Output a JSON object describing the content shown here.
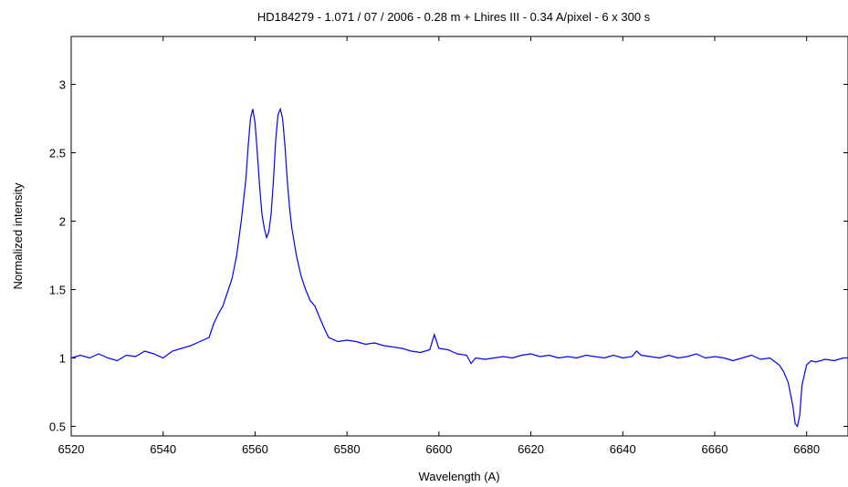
{
  "chart_data": {
    "type": "line",
    "title": "HD184279 - 1.071 / 07 / 2006 - 0.28 m + Lhires III - 0.34 A/pixel - 6 x 300 s",
    "xlabel": "Wavelength (A)",
    "ylabel": "Normalized intensity",
    "xlim": [
      6520,
      6689
    ],
    "ylim": [
      0.43,
      3.35
    ],
    "x_ticks": [
      6520,
      6540,
      6560,
      6580,
      6600,
      6620,
      6640,
      6660,
      6680
    ],
    "y_ticks": [
      0.5,
      1,
      1.5,
      2,
      2.5,
      3
    ],
    "y_tick_labels": [
      "0.5",
      "1",
      "1.5",
      "2",
      "2.5",
      "3"
    ],
    "grid": false,
    "line_color": "#0000ff",
    "series": [
      {
        "x": [
          6520,
          6522,
          6524,
          6526,
          6528,
          6530,
          6532,
          6534,
          6536,
          6538,
          6540,
          6542,
          6544,
          6546,
          6548,
          6550,
          6551,
          6552,
          6553,
          6554,
          6555,
          6556,
          6557,
          6558,
          6558.5,
          6559,
          6559.5,
          6560,
          6560.5,
          6561,
          6561.5,
          6562,
          6562.5,
          6563,
          6563.5,
          6564,
          6564.5,
          6565,
          6565.5,
          6566,
          6566.5,
          6567,
          6567.5,
          6568,
          6569,
          6570,
          6571,
          6572,
          6573,
          6574,
          6575,
          6576,
          6578,
          6580,
          6582,
          6584,
          6586,
          6588,
          6590,
          6592,
          6594,
          6596,
          6598,
          6599,
          6600,
          6602,
          6604,
          6606,
          6607,
          6608,
          6610,
          6612,
          6614,
          6616,
          6618,
          6620,
          6622,
          6624,
          6626,
          6628,
          6630,
          6632,
          6634,
          6636,
          6638,
          6640,
          6642,
          6643,
          6644,
          6646,
          6648,
          6650,
          6652,
          6654,
          6656,
          6658,
          6660,
          6662,
          6664,
          6666,
          6668,
          6670,
          6672,
          6674,
          6675,
          6676,
          6677,
          6677.5,
          6678,
          6678.5,
          6679,
          6680,
          6681,
          6682,
          6684,
          6686,
          6688,
          6689
        ],
        "y": [
          1.0,
          1.02,
          1.0,
          1.03,
          1.0,
          0.98,
          1.02,
          1.01,
          1.05,
          1.03,
          1.0,
          1.05,
          1.07,
          1.09,
          1.12,
          1.15,
          1.25,
          1.32,
          1.38,
          1.48,
          1.58,
          1.75,
          2.0,
          2.3,
          2.55,
          2.75,
          2.82,
          2.72,
          2.5,
          2.25,
          2.05,
          1.95,
          1.88,
          1.92,
          2.05,
          2.3,
          2.6,
          2.78,
          2.82,
          2.75,
          2.55,
          2.3,
          2.1,
          1.95,
          1.75,
          1.6,
          1.5,
          1.42,
          1.38,
          1.3,
          1.22,
          1.15,
          1.12,
          1.13,
          1.12,
          1.1,
          1.11,
          1.09,
          1.08,
          1.07,
          1.05,
          1.04,
          1.06,
          1.17,
          1.07,
          1.06,
          1.03,
          1.02,
          0.96,
          1.0,
          0.99,
          1.0,
          1.01,
          1.0,
          1.02,
          1.03,
          1.01,
          1.02,
          1.0,
          1.01,
          1.0,
          1.02,
          1.01,
          1.0,
          1.02,
          1.0,
          1.01,
          1.05,
          1.02,
          1.01,
          1.0,
          1.02,
          1.0,
          1.01,
          1.03,
          1.0,
          1.01,
          1.0,
          0.98,
          1.0,
          1.02,
          0.99,
          1.0,
          0.95,
          0.9,
          0.82,
          0.65,
          0.52,
          0.5,
          0.58,
          0.8,
          0.95,
          0.98,
          0.97,
          0.99,
          0.98,
          1.0,
          1.0
        ]
      }
    ]
  }
}
